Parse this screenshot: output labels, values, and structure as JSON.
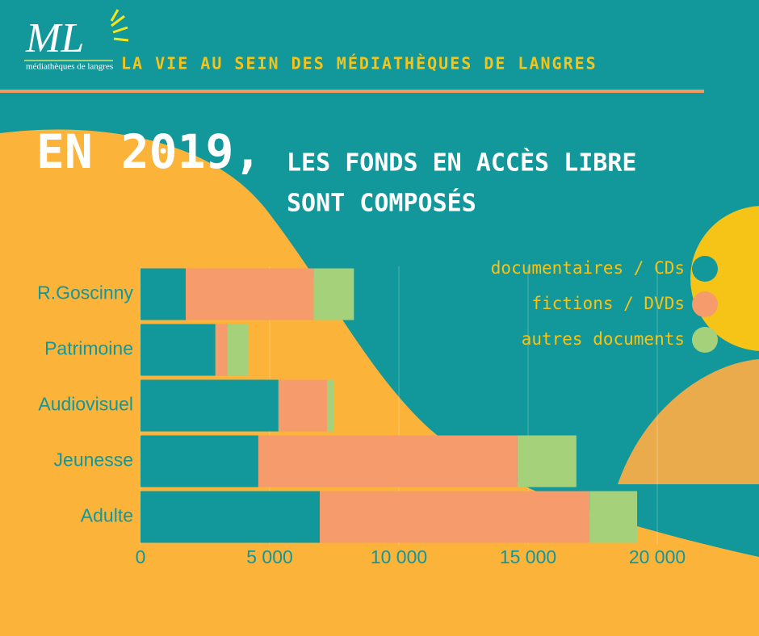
{
  "header": {
    "logo": "ML",
    "logo_subtitle": "médiathèques de langres",
    "title": "LA VIE AU SEIN DES MÉDIATHÈQUES DE LANGRES"
  },
  "chart_data": {
    "type": "stacked-bar-horizontal",
    "title_year": "EN 2019,",
    "title_line1": "LES FONDS EN ACCÈS LIBRE",
    "title_line2": "SONT COMPOSÉS",
    "categories": [
      "R.Goscinny",
      "Patrimoine",
      "Audiovisuel",
      "Jeunesse",
      "Adulte"
    ],
    "series": [
      {
        "name": "documentaires / CDs",
        "color": "#12979a",
        "values": [
          1750,
          2900,
          5340,
          4560,
          6940
        ]
      },
      {
        "name": "fictions / DVDs",
        "color": "#f59b6c",
        "values": [
          4950,
          470,
          1880,
          10030,
          10440
        ]
      },
      {
        "name": "autres documents",
        "color": "#a4d17a",
        "values": [
          1560,
          810,
          280,
          2280,
          1840
        ]
      }
    ],
    "xlim": [
      0,
      20000
    ],
    "xticks": [
      0,
      {
        "value": 5000,
        "label": "5 000"
      },
      {
        "value": 10000,
        "label": "10 000"
      },
      {
        "value": 15000,
        "label": "15 000"
      },
      {
        "value": 20000,
        "label": "20 000"
      }
    ],
    "grid": true,
    "legend": "top-right"
  }
}
